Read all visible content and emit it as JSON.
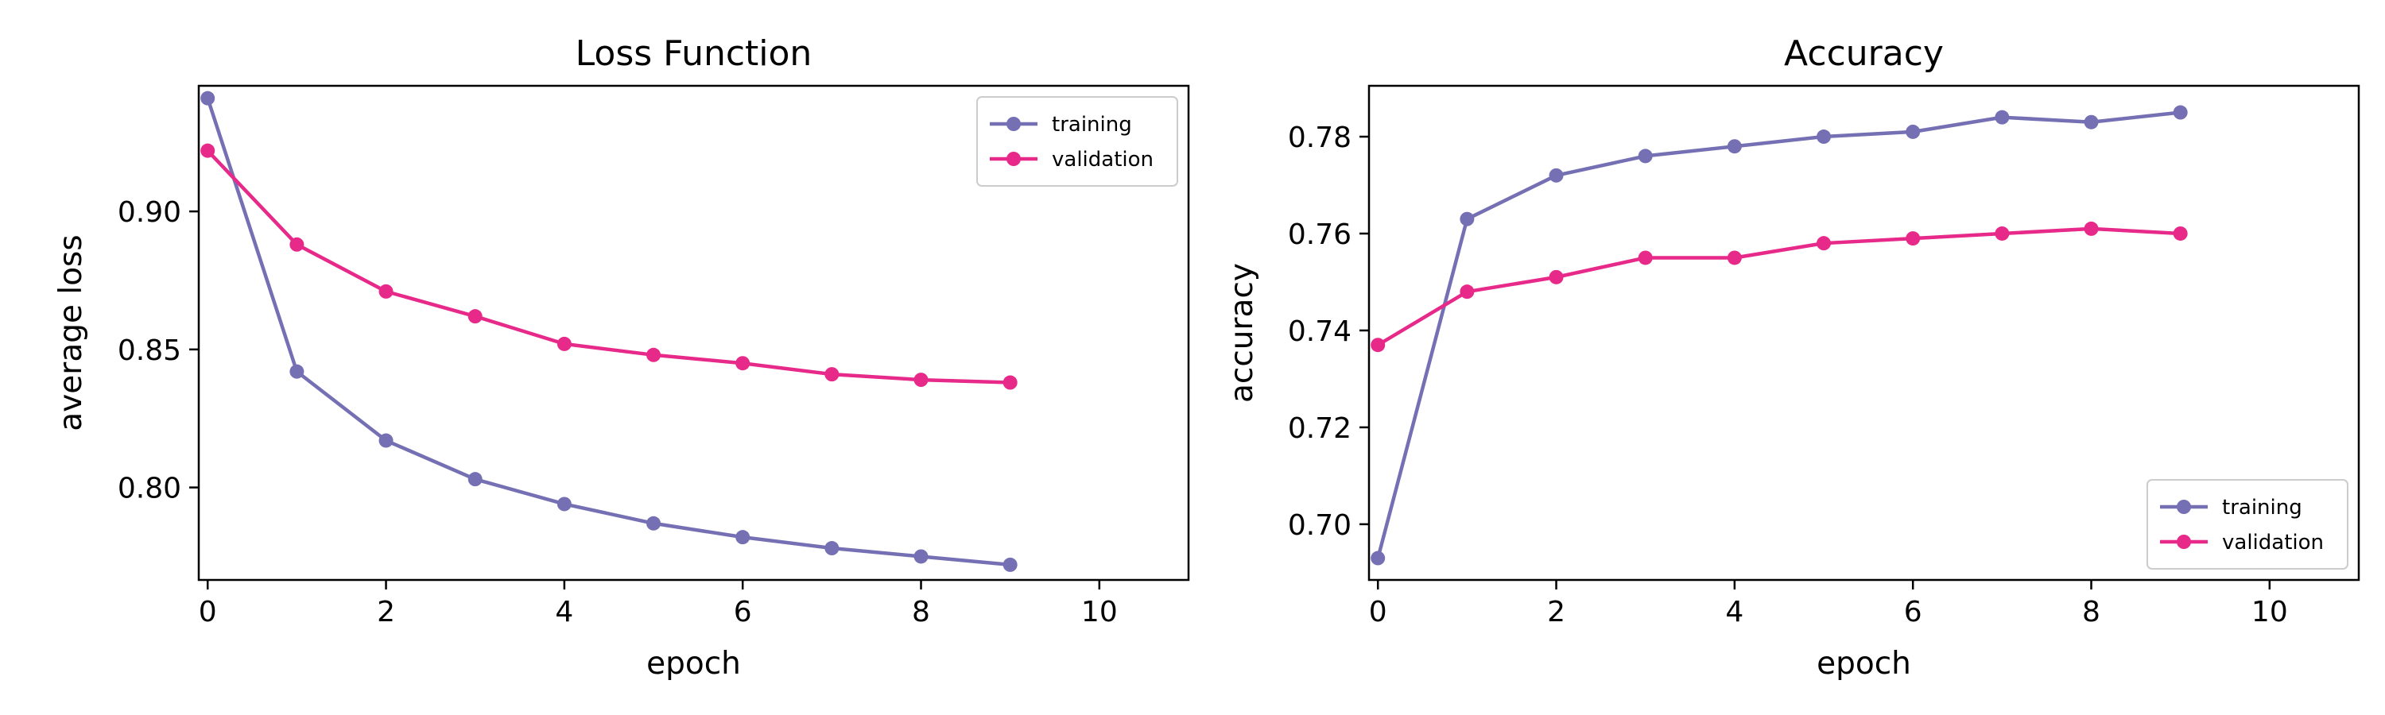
{
  "chart_data": [
    {
      "type": "line",
      "title": "Loss Function",
      "xlabel": "epoch",
      "ylabel": "average loss",
      "xlim": [
        -0.1,
        11
      ],
      "ylim": [
        0.7665,
        0.9455
      ],
      "xticks": [
        0,
        2,
        4,
        6,
        8,
        10
      ],
      "yticks": [
        0.8,
        0.85,
        0.9
      ],
      "ytick_labels": [
        "0.80",
        "0.85",
        "0.90"
      ],
      "legend": "top-right",
      "grid": false,
      "x": [
        0,
        1,
        2,
        3,
        4,
        5,
        6,
        7,
        8,
        9
      ],
      "series": [
        {
          "name": "training",
          "color": "#7570b3",
          "values": [
            0.941,
            0.842,
            0.817,
            0.803,
            0.794,
            0.787,
            0.782,
            0.778,
            0.775,
            0.772
          ]
        },
        {
          "name": "validation",
          "color": "#e7298a",
          "values": [
            0.922,
            0.888,
            0.871,
            0.862,
            0.852,
            0.848,
            0.845,
            0.841,
            0.839,
            0.838
          ]
        }
      ]
    },
    {
      "type": "line",
      "title": "Accuracy",
      "xlabel": "epoch",
      "ylabel": "accuracy",
      "xlim": [
        -0.1,
        11
      ],
      "ylim": [
        0.6885,
        0.7905
      ],
      "xticks": [
        0,
        2,
        4,
        6,
        8,
        10
      ],
      "yticks": [
        0.7,
        0.72,
        0.74,
        0.76,
        0.78
      ],
      "ytick_labels": [
        "0.70",
        "0.72",
        "0.74",
        "0.76",
        "0.78"
      ],
      "legend": "bottom-right",
      "grid": false,
      "x": [
        0,
        1,
        2,
        3,
        4,
        5,
        6,
        7,
        8,
        9
      ],
      "series": [
        {
          "name": "training",
          "color": "#7570b3",
          "values": [
            0.693,
            0.763,
            0.772,
            0.776,
            0.778,
            0.78,
            0.781,
            0.784,
            0.783,
            0.785
          ]
        },
        {
          "name": "validation",
          "color": "#e7298a",
          "values": [
            0.737,
            0.748,
            0.751,
            0.755,
            0.755,
            0.758,
            0.759,
            0.76,
            0.761,
            0.76
          ]
        }
      ]
    }
  ]
}
